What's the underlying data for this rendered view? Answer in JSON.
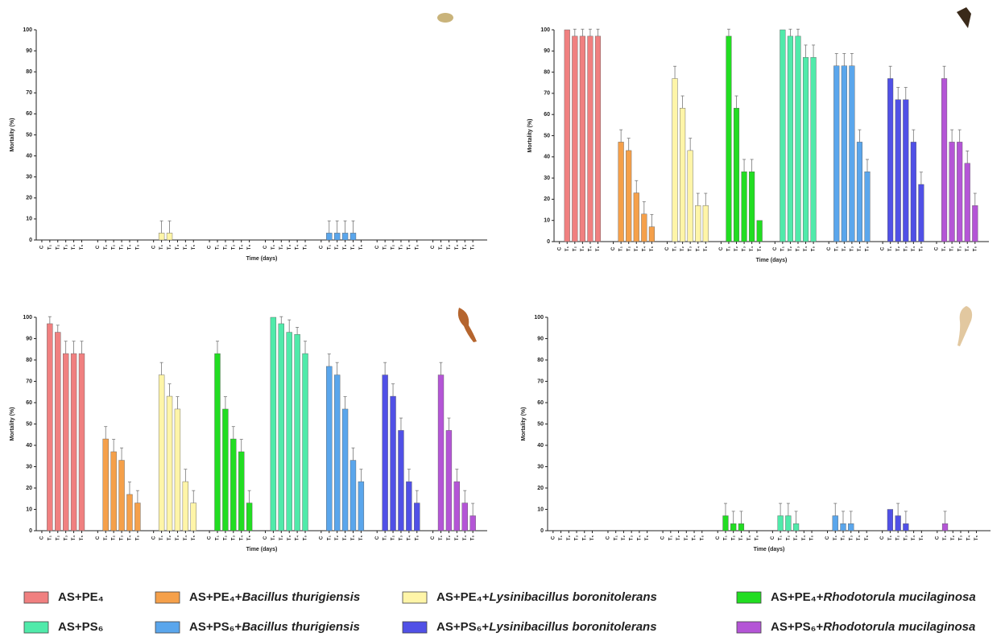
{
  "legend": [
    {
      "name": "AS+PE₄",
      "color": "#f08080"
    },
    {
      "name": "AS+PE₄+Bacillus thurigiensis",
      "color": "#f5a04a"
    },
    {
      "name": "AS+PE₄+Lysinibacillus boronitolerans",
      "color": "#fff5a8"
    },
    {
      "name": "AS+PE₄+Rhodotorula mucilaginosa",
      "color": "#22dd22"
    },
    {
      "name": "AS+PS₆",
      "color": "#50eaaa"
    },
    {
      "name": "AS+PS₆+Bacillus thurigiensis",
      "color": "#5aa6ec"
    },
    {
      "name": "AS+PS₆+Lysinibacillus boronitolerans",
      "color": "#5050e6"
    },
    {
      "name": "AS+PS₆+Rhodotorula mucilaginosa",
      "color": "#b455d6"
    }
  ],
  "chart_data": [
    {
      "type": "bar",
      "x_label": "Time (days)",
      "y_label": "Mortality (%)",
      "categories": [
        "C",
        "T₁",
        "T₂",
        "T₃",
        "T₄",
        "T₅"
      ],
      "ylim": [
        0,
        100
      ],
      "yticks": [
        0,
        10,
        20,
        30,
        40,
        50,
        60,
        70,
        80,
        90,
        100
      ],
      "series": [
        {
          "values": [
            0,
            0,
            0,
            0,
            0,
            0
          ],
          "errors": [
            0,
            0,
            0,
            0,
            0,
            0
          ]
        },
        {
          "values": [
            0,
            0,
            0,
            0,
            0,
            0
          ],
          "errors": [
            0,
            0,
            0,
            0,
            0,
            0
          ]
        },
        {
          "values": [
            0,
            3.3,
            3.3,
            0,
            0,
            0
          ],
          "errors": [
            0,
            5.8,
            5.8,
            0,
            0,
            0
          ]
        },
        {
          "values": [
            0,
            0,
            0,
            0,
            0,
            0
          ],
          "errors": [
            0,
            0,
            0,
            0,
            0,
            0
          ]
        },
        {
          "values": [
            0,
            0,
            0,
            0,
            0,
            0
          ],
          "errors": [
            0,
            0,
            0,
            0,
            0,
            0
          ]
        },
        {
          "values": [
            0,
            3.3,
            3.3,
            3.3,
            3.3,
            0
          ],
          "errors": [
            0,
            5.8,
            5.8,
            5.8,
            5.8,
            0
          ]
        },
        {
          "values": [
            0,
            0,
            0,
            0,
            0,
            0
          ],
          "errors": [
            0,
            0,
            0,
            0,
            0,
            0
          ]
        },
        {
          "values": [
            0,
            0,
            0,
            0,
            0,
            0
          ],
          "errors": [
            0,
            0,
            0,
            0,
            0,
            0
          ]
        }
      ]
    },
    {
      "type": "bar",
      "x_label": "Time (days)",
      "y_label": "Mortality (%)",
      "categories": [
        "C",
        "T₁",
        "T₂",
        "T₃",
        "T₄",
        "T₅"
      ],
      "ylim": [
        0,
        100
      ],
      "yticks": [
        0,
        10,
        20,
        30,
        40,
        50,
        60,
        70,
        80,
        90,
        100
      ],
      "series": [
        {
          "values": [
            0,
            100,
            97,
            97,
            97,
            97
          ],
          "errors": [
            0,
            0,
            3.3,
            3.3,
            3.3,
            3.3
          ]
        },
        {
          "values": [
            0,
            47,
            43,
            23,
            13,
            7
          ],
          "errors": [
            0,
            5.8,
            5.8,
            5.8,
            5.8,
            5.8
          ]
        },
        {
          "values": [
            0,
            77,
            63,
            43,
            17,
            17
          ],
          "errors": [
            0,
            5.8,
            5.8,
            5.8,
            5.8,
            5.8
          ]
        },
        {
          "values": [
            0,
            97,
            63,
            33,
            33,
            10
          ],
          "errors": [
            0,
            3.3,
            5.8,
            5.8,
            5.8,
            0
          ]
        },
        {
          "values": [
            0,
            100,
            97,
            97,
            87,
            87
          ],
          "errors": [
            0,
            0,
            3.3,
            3.3,
            5.8,
            5.8
          ]
        },
        {
          "values": [
            0,
            83,
            83,
            83,
            47,
            33
          ],
          "errors": [
            0,
            5.8,
            5.8,
            5.8,
            5.8,
            5.8
          ]
        },
        {
          "values": [
            0,
            77,
            67,
            67,
            47,
            27
          ],
          "errors": [
            0,
            5.8,
            5.8,
            5.8,
            5.8,
            5.8
          ]
        },
        {
          "values": [
            0,
            77,
            47,
            47,
            37,
            17
          ],
          "errors": [
            0,
            5.8,
            5.8,
            5.8,
            5.8,
            5.8
          ]
        }
      ]
    },
    {
      "type": "bar",
      "x_label": "Time (days)",
      "y_label": "Mortality (%)",
      "categories": [
        "C",
        "T₁",
        "T₂",
        "T₃",
        "T₄",
        "T₅"
      ],
      "ylim": [
        0,
        100
      ],
      "yticks": [
        0,
        10,
        20,
        30,
        40,
        50,
        60,
        70,
        80,
        90,
        100
      ],
      "series": [
        {
          "values": [
            0,
            97,
            93,
            83,
            83,
            83
          ],
          "errors": [
            0,
            3.3,
            3.3,
            5.8,
            5.8,
            5.8
          ]
        },
        {
          "values": [
            0,
            43,
            37,
            33,
            17,
            13
          ],
          "errors": [
            0,
            5.8,
            5.8,
            5.8,
            5.8,
            5.8
          ]
        },
        {
          "values": [
            0,
            73,
            63,
            57,
            23,
            13
          ],
          "errors": [
            0,
            5.8,
            5.8,
            5.8,
            5.8,
            5.8
          ]
        },
        {
          "values": [
            0,
            83,
            57,
            43,
            37,
            13
          ],
          "errors": [
            0,
            5.8,
            5.8,
            5.8,
            5.8,
            5.8
          ]
        },
        {
          "values": [
            0,
            100,
            97,
            93,
            92,
            83
          ],
          "errors": [
            0,
            0,
            3.3,
            5.8,
            3.3,
            5.8
          ]
        },
        {
          "values": [
            0,
            77,
            73,
            57,
            33,
            23
          ],
          "errors": [
            0,
            5.8,
            5.8,
            5.8,
            5.8,
            5.8
          ]
        },
        {
          "values": [
            0,
            73,
            63,
            47,
            23,
            13
          ],
          "errors": [
            0,
            5.8,
            5.8,
            5.8,
            5.8,
            5.8
          ]
        },
        {
          "values": [
            0,
            73,
            47,
            23,
            13,
            7
          ],
          "errors": [
            0,
            5.8,
            5.8,
            5.8,
            5.8,
            5.8
          ]
        }
      ]
    },
    {
      "type": "bar",
      "x_label": "Time (days)",
      "y_label": "Mortality (%)",
      "categories": [
        "C",
        "T₁",
        "T₂",
        "T₃",
        "T₄",
        "T₅"
      ],
      "ylim": [
        0,
        100
      ],
      "yticks": [
        0,
        10,
        20,
        30,
        40,
        50,
        60,
        70,
        80,
        90,
        100
      ],
      "series": [
        {
          "values": [
            0,
            0,
            0,
            0,
            0,
            0
          ],
          "errors": [
            0,
            0,
            0,
            0,
            0,
            0
          ]
        },
        {
          "values": [
            0,
            0,
            0,
            0,
            0,
            0
          ],
          "errors": [
            0,
            0,
            0,
            0,
            0,
            0
          ]
        },
        {
          "values": [
            0,
            0,
            0,
            0,
            0,
            0
          ],
          "errors": [
            0,
            0,
            0,
            0,
            0,
            0
          ]
        },
        {
          "values": [
            0,
            7,
            3.3,
            3.3,
            0,
            0
          ],
          "errors": [
            0,
            5.8,
            5.8,
            5.8,
            0,
            0
          ]
        },
        {
          "values": [
            0,
            7,
            7,
            3.3,
            0,
            0
          ],
          "errors": [
            0,
            5.8,
            5.8,
            5.8,
            0,
            0
          ]
        },
        {
          "values": [
            0,
            7,
            3.3,
            3.3,
            0,
            0
          ],
          "errors": [
            0,
            5.8,
            5.8,
            5.8,
            0,
            0
          ]
        },
        {
          "values": [
            0,
            10,
            7,
            3.3,
            0,
            0
          ],
          "errors": [
            0,
            0,
            5.8,
            5.8,
            0,
            0
          ]
        },
        {
          "values": [
            0,
            3.3,
            0,
            0,
            0,
            0
          ],
          "errors": [
            0,
            5.8,
            0,
            0,
            0,
            0
          ]
        }
      ]
    }
  ]
}
